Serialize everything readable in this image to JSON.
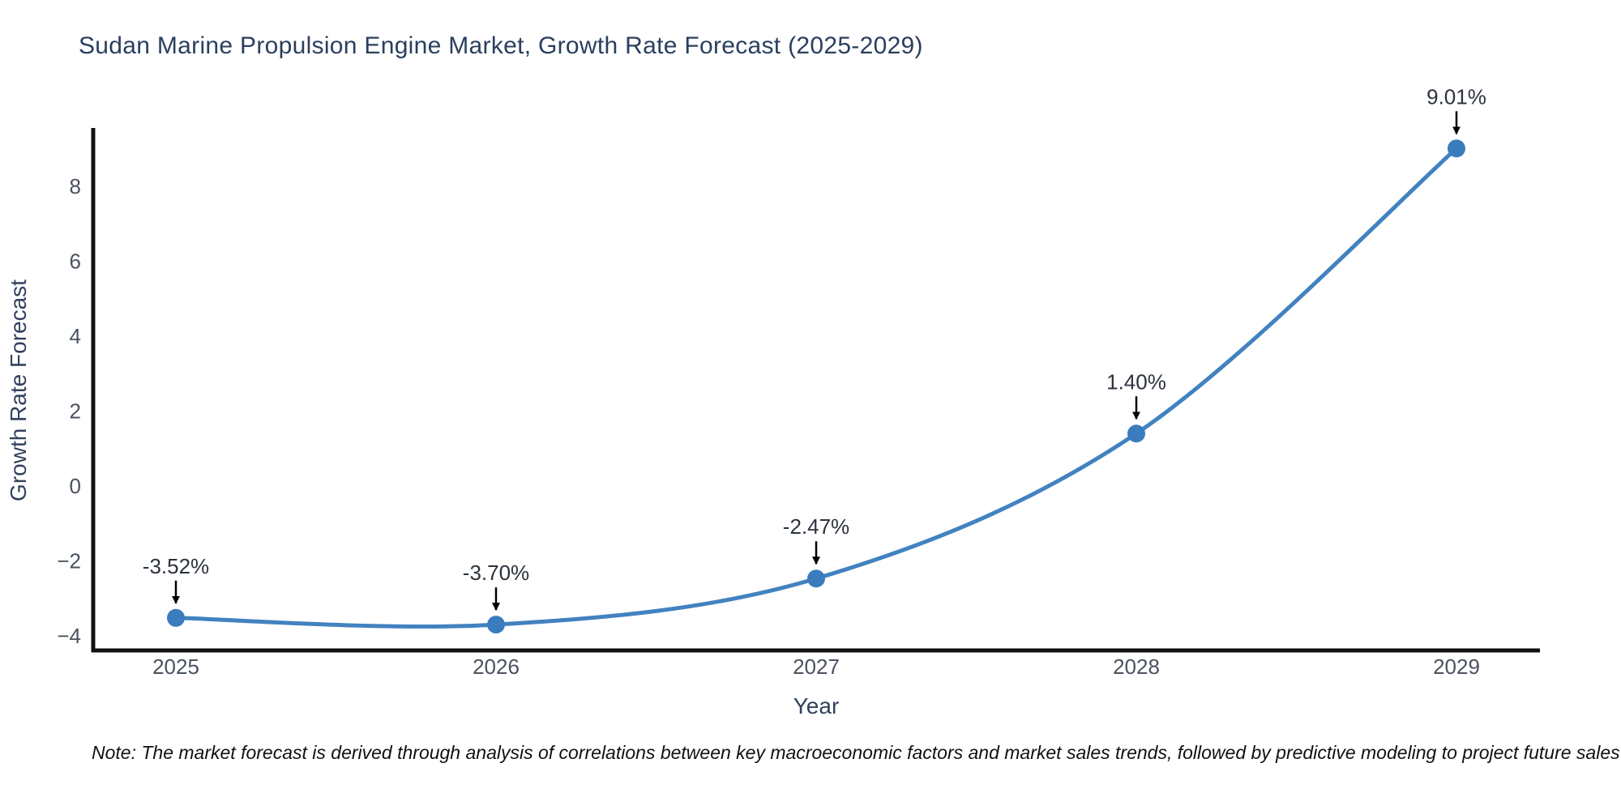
{
  "chart_data": {
    "type": "line",
    "title": "Sudan Marine Propulsion Engine Market, Growth Rate Forecast (2025-2029)",
    "xlabel": "Year",
    "ylabel": "Growth Rate Forecast",
    "categories": [
      "2025",
      "2026",
      "2027",
      "2028",
      "2029"
    ],
    "series": [
      {
        "name": "Growth Rate Forecast",
        "values": [
          -3.52,
          -3.7,
          -2.47,
          1.4,
          9.01
        ]
      }
    ],
    "point_labels": [
      "-3.52%",
      "-3.70%",
      "-2.47%",
      "1.40%",
      "9.01%"
    ],
    "yticks": [
      -4,
      -2,
      0,
      2,
      4,
      6,
      8
    ],
    "ylim": [
      -4.4,
      9.6
    ],
    "grid": false,
    "legend": "none",
    "line_smoothing": "spline",
    "colors": {
      "line": "#4282c0",
      "marker": "#3a7cbd",
      "spine": "#111111",
      "arrow": "#000000",
      "title": "#2a3f5f",
      "tick_label": "#4a5260",
      "axis_title": "#33415e",
      "annotation_text": "#2b323c"
    }
  },
  "note": "Note: The market forecast is derived through analysis of correlations between key macroeconomic factors and market sales trends, followed by predictive modeling to project future sales"
}
